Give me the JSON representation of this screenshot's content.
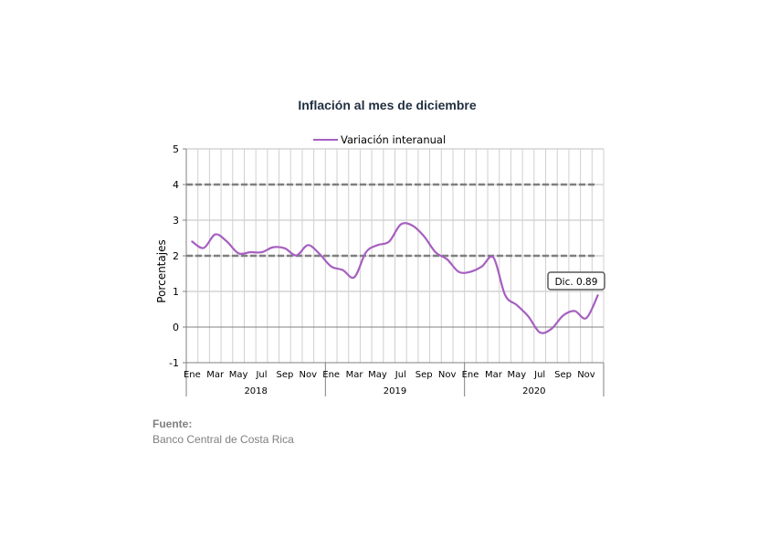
{
  "chart_data": {
    "type": "line",
    "title": "Inflación al mes de diciembre",
    "ylabel": "Porcentajes",
    "xlabel": "",
    "ylim": [
      -1,
      5
    ],
    "yticks": [
      "5",
      "4",
      "3",
      "2",
      "1",
      "0",
      "-1"
    ],
    "ytick_values": [
      5,
      4,
      3,
      2,
      1,
      0,
      -1
    ],
    "month_labels": [
      "Ene",
      "Mar",
      "May",
      "Jul",
      "Sep",
      "Nov"
    ],
    "years": [
      "2018",
      "2019",
      "2020"
    ],
    "reference_lines": [
      4,
      2
    ],
    "legend_position": "top-center",
    "grid": true,
    "series": [
      {
        "name": "Variación interanual",
        "color": "#a65fc0",
        "values": [
          2.4,
          2.22,
          2.6,
          2.4,
          2.07,
          2.1,
          2.1,
          2.24,
          2.21,
          2.01,
          2.3,
          2.05,
          1.7,
          1.6,
          1.4,
          2.1,
          2.3,
          2.4,
          2.88,
          2.85,
          2.55,
          2.1,
          1.9,
          1.55,
          1.55,
          1.7,
          1.95,
          0.9,
          0.62,
          0.3,
          -0.15,
          -0.05,
          0.32,
          0.45,
          0.25,
          0.89
        ]
      }
    ],
    "annotation": "Dic. 0.89"
  },
  "source": {
    "label": "Fuente:",
    "text": "Banco Central de Costa Rica"
  }
}
